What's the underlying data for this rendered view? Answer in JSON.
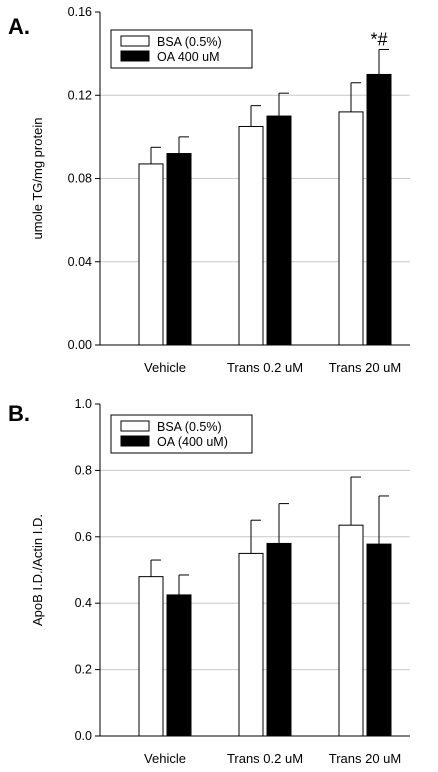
{
  "panels": [
    {
      "label": "A."
    },
    {
      "label": "B."
    }
  ],
  "chart_data": [
    {
      "type": "bar",
      "categories": [
        "Vehicle",
        "Trans 0.2 uM",
        "Trans 20 uM"
      ],
      "ylabel": "umole TG/mg protein",
      "ylim": [
        0,
        0.16
      ],
      "yticks": [
        "0.00",
        "0.04",
        "0.08",
        "0.12",
        "0.16"
      ],
      "ytick_values": [
        0,
        0.04,
        0.08,
        0.12,
        0.16
      ],
      "grid": true,
      "legend_position": "top-left",
      "series": [
        {
          "name": "BSA (0.5%)",
          "fill": "#ffffff",
          "values": [
            0.087,
            0.105,
            0.112
          ],
          "errors": [
            0.008,
            0.01,
            0.014
          ]
        },
        {
          "name": "OA 400 uM",
          "fill": "#000000",
          "values": [
            0.092,
            0.11,
            0.13
          ],
          "errors": [
            0.008,
            0.011,
            0.012
          ]
        }
      ],
      "annotations": [
        {
          "text": "*#",
          "category": "Trans 20 uM",
          "series": "OA 400 uM"
        }
      ]
    },
    {
      "type": "bar",
      "categories": [
        "Vehicle",
        "Trans 0.2 uM",
        "Trans 20 uM"
      ],
      "ylabel": "ApoB I.D./Actin I.D.",
      "ylim": [
        0,
        1.0
      ],
      "yticks": [
        "0.0",
        "0.2",
        "0.4",
        "0.6",
        "0.8",
        "1.0"
      ],
      "ytick_values": [
        0,
        0.2,
        0.4,
        0.6,
        0.8,
        1.0
      ],
      "grid": true,
      "legend_position": "top-left",
      "series": [
        {
          "name": "BSA (0.5%)",
          "fill": "#ffffff",
          "values": [
            0.48,
            0.55,
            0.635
          ],
          "errors": [
            0.05,
            0.1,
            0.145
          ]
        },
        {
          "name": "OA (400 uM)",
          "fill": "#000000",
          "values": [
            0.425,
            0.58,
            0.578
          ],
          "errors": [
            0.06,
            0.12,
            0.145
          ]
        }
      ],
      "annotations": []
    }
  ]
}
